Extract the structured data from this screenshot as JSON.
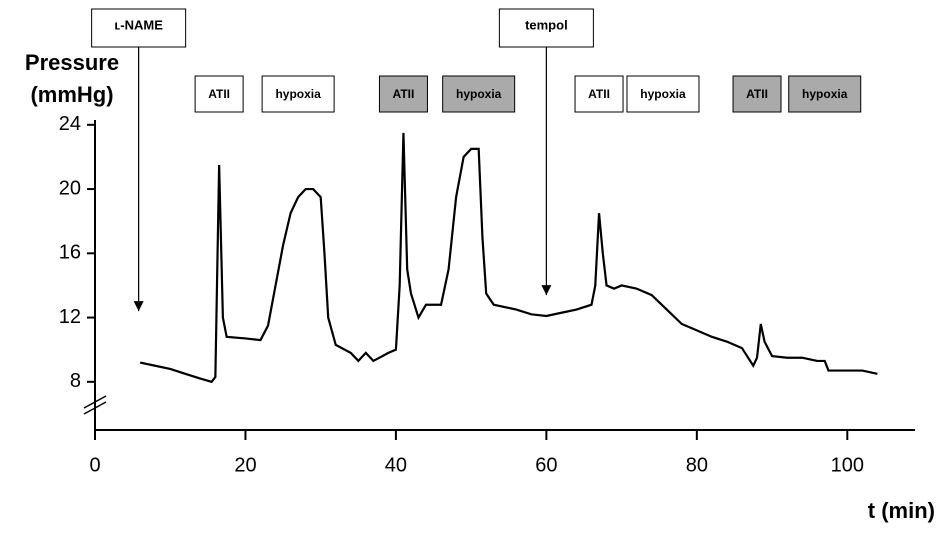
{
  "chart_data": {
    "type": "line",
    "ylabel": [
      "Pressure",
      "(mmHg)"
    ],
    "xlabel": "t (min)",
    "xlim": [
      0,
      109
    ],
    "ylim": [
      5,
      24.3
    ],
    "xticks": [
      0,
      20,
      40,
      60,
      80,
      100
    ],
    "yticks": [
      8,
      12,
      16,
      20,
      24
    ],
    "color": "#000000",
    "x": [
      6,
      8,
      10,
      12,
      14,
      15.5,
      16,
      16.5,
      17,
      17.5,
      20,
      22,
      23,
      24,
      25,
      26,
      27,
      28,
      29,
      30,
      30.5,
      31,
      32,
      34,
      35,
      36,
      37,
      39,
      40,
      40.5,
      41,
      41.5,
      42,
      43,
      44,
      46,
      47,
      48,
      49,
      50,
      51,
      51.5,
      52,
      53,
      56,
      58,
      60,
      62,
      64,
      66,
      66.5,
      67,
      67.5,
      68,
      69,
      70,
      72,
      74,
      76,
      78,
      80,
      82,
      84,
      86,
      87.5,
      88,
      88.5,
      89,
      90,
      92,
      94,
      96,
      97,
      97.5,
      100,
      102,
      104
    ],
    "values": [
      9.2,
      9.0,
      8.8,
      8.5,
      8.2,
      8.0,
      8.3,
      21.5,
      12,
      10.8,
      10.7,
      10.6,
      11.5,
      14,
      16.5,
      18.5,
      19.5,
      20.0,
      20.0,
      19.5,
      16,
      12,
      10.3,
      9.8,
      9.3,
      9.8,
      9.3,
      9.8,
      10,
      14,
      23.5,
      15,
      13.5,
      12,
      12.8,
      12.8,
      15,
      19.5,
      22,
      22.5,
      22.5,
      17,
      13.5,
      12.8,
      12.5,
      12.2,
      12.1,
      12.3,
      12.5,
      12.8,
      14,
      18.5,
      16,
      14,
      13.8,
      14.0,
      13.8,
      13.4,
      12.5,
      11.6,
      11.2,
      10.8,
      10.5,
      10.1,
      9.0,
      9.5,
      11.6,
      10.5,
      9.6,
      9.5,
      9.5,
      9.3,
      9.3,
      8.7,
      8.7,
      8.7,
      8.5
    ],
    "arrows": [
      {
        "label": "ʟ-NAME",
        "x": 5.8,
        "y": 12.4
      },
      {
        "label": "tempol",
        "x": 60,
        "y": 13.4
      }
    ],
    "boxes": [
      {
        "label": "ATII",
        "x": 16.5,
        "shaded": false
      },
      {
        "label": "hypoxia",
        "x": 27,
        "shaded": false
      },
      {
        "label": "ATII",
        "x": 41,
        "shaded": true
      },
      {
        "label": "hypoxia",
        "x": 51,
        "shaded": true
      },
      {
        "label": "ATII",
        "x": 67,
        "shaded": false
      },
      {
        "label": "hypoxia",
        "x": 75.5,
        "shaded": false
      },
      {
        "label": "ATII",
        "x": 88,
        "shaded": true
      },
      {
        "label": "hypoxia",
        "x": 97,
        "shaded": true
      }
    ]
  }
}
